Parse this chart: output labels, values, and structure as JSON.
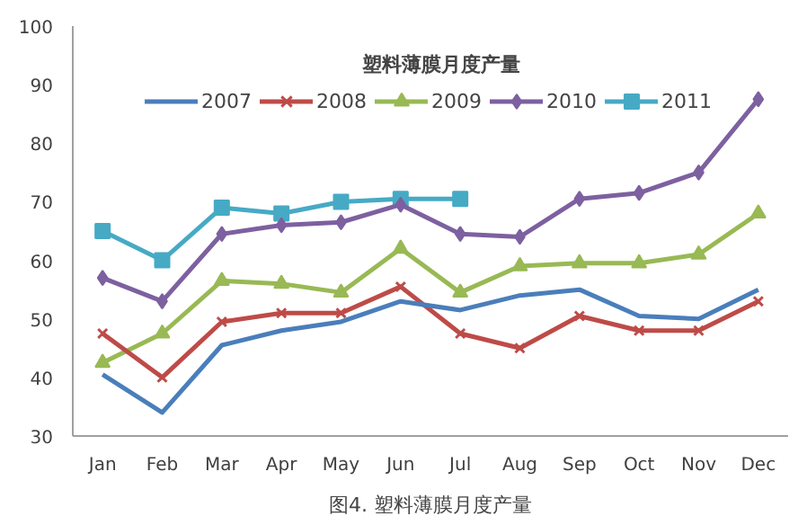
{
  "chart_data": {
    "type": "line",
    "title": "塑料薄膜月度产量",
    "annotations": [
      "图4. 塑料薄膜月度产量"
    ],
    "categories": [
      "Jan",
      "Feb",
      "Mar",
      "Apr",
      "May",
      "Jun",
      "Jul",
      "Aug",
      "Sep",
      "Oct",
      "Nov",
      "Dec"
    ],
    "ylim": [
      30,
      100
    ],
    "yticks": [
      30,
      40,
      50,
      60,
      70,
      80,
      90,
      100
    ],
    "grid": false,
    "legend": "top",
    "series": [
      {
        "name": "2007",
        "color": "#4a7ebb",
        "marker": "none",
        "values": [
          40.5,
          34,
          45.5,
          48,
          49.5,
          53,
          51.5,
          54,
          55,
          50.5,
          50,
          55
        ]
      },
      {
        "name": "2008",
        "color": "#be4b48",
        "marker": "cross",
        "values": [
          47.5,
          40,
          49.5,
          51,
          51,
          55.5,
          47.5,
          45,
          50.5,
          48,
          48,
          53
        ]
      },
      {
        "name": "2009",
        "color": "#98b954",
        "marker": "triangle",
        "values": [
          42.5,
          47.5,
          56.5,
          56,
          54.5,
          62,
          54.5,
          59,
          59.5,
          59.5,
          61,
          68
        ]
      },
      {
        "name": "2010",
        "color": "#7d60a0",
        "marker": "diamond",
        "values": [
          57,
          53,
          64.5,
          66,
          66.5,
          69.5,
          64.5,
          64,
          70.5,
          71.5,
          75,
          87.5
        ]
      },
      {
        "name": "2011",
        "color": "#46aac5",
        "marker": "square",
        "values": [
          65,
          60,
          69,
          68,
          70,
          70.5,
          70.5,
          null,
          null,
          null,
          null,
          null
        ]
      }
    ]
  }
}
